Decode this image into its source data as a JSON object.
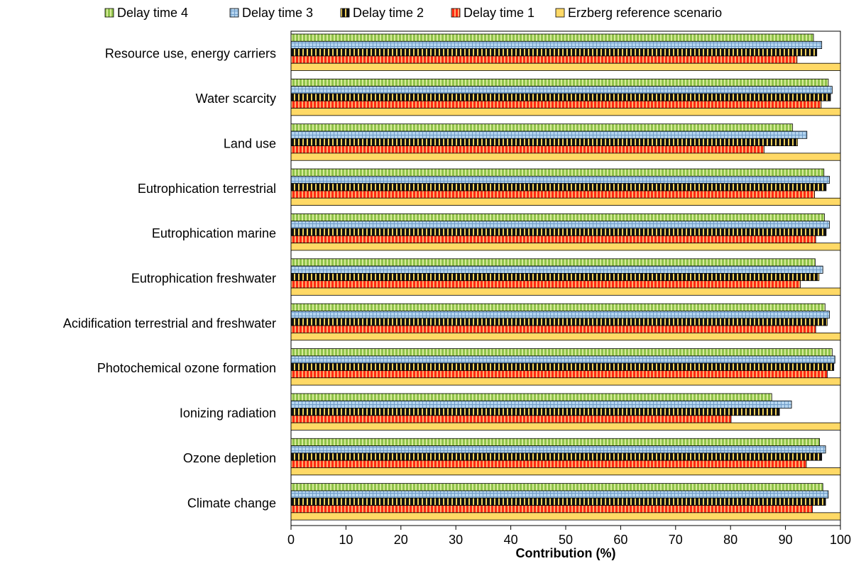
{
  "chart_data": {
    "type": "bar",
    "orientation": "horizontal",
    "title": "",
    "xlabel": "Contribution (%)",
    "ylabel": "",
    "xlim": [
      0,
      100
    ],
    "xticks": [
      0,
      10,
      20,
      30,
      40,
      50,
      60,
      70,
      80,
      90,
      100
    ],
    "grid": false,
    "legend_position": "top",
    "categories": [
      "Resource use, energy carriers",
      "Water scarcity",
      "Land use",
      "Eutrophication terrestrial",
      "Eutrophication marine",
      "Eutrophication freshwater",
      "Acidification terrestrial and freshwater",
      "Photochemical ozone formation",
      "Ionizing radiation",
      "Ozone depletion",
      "Climate change"
    ],
    "legend_order": [
      "Delay time 4",
      "Delay time 3",
      "Delay time 2",
      "Delay time 1",
      "Erzberg reference scenario"
    ],
    "series": [
      {
        "name": "Delay time 4",
        "color": "#8fc24a",
        "pattern": "green-vertical-stripes",
        "values": [
          95.1,
          97.8,
          91.3,
          97.0,
          97.1,
          95.4,
          97.2,
          98.5,
          87.5,
          96.2,
          96.8
        ]
      },
      {
        "name": "Delay time 3",
        "color": "#9dc3e6",
        "pattern": "blue-grid",
        "values": [
          96.6,
          98.5,
          93.9,
          98.0,
          98.0,
          96.8,
          98.0,
          99.0,
          91.1,
          97.3,
          97.8
        ]
      },
      {
        "name": "Delay time 2",
        "color": "#000000",
        "pattern": "black-yellow-vertical-stripes",
        "values": [
          95.7,
          98.2,
          92.2,
          97.4,
          97.4,
          96.1,
          97.6,
          98.8,
          88.9,
          96.6,
          97.3
        ]
      },
      {
        "name": "Delay time 1",
        "color": "#ff3b1f",
        "pattern": "red-vertical-stripes",
        "values": [
          92.1,
          96.5,
          86.1,
          95.3,
          95.5,
          92.7,
          95.5,
          97.6,
          80.1,
          93.8,
          94.9
        ]
      },
      {
        "name": "Erzberg reference scenario",
        "color": "#ffd966",
        "pattern": "solid-yellow",
        "values": [
          100,
          100,
          100,
          100,
          100,
          100,
          100,
          100,
          100,
          100,
          100
        ]
      }
    ]
  }
}
